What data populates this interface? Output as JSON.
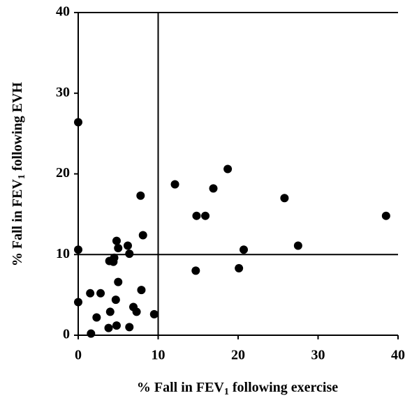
{
  "chart_data": {
    "type": "scatter",
    "xlabel": [
      "% Fall in FEV",
      "1",
      " following exercise"
    ],
    "ylabel": [
      "% Fall in FEV",
      "1",
      " following EVH"
    ],
    "x": [
      0,
      0,
      0,
      1.5,
      1.6,
      2.3,
      2.8,
      3.8,
      4.0,
      3.9,
      4.4,
      4.5,
      4.8,
      5.0,
      4.7,
      5.0,
      4.8,
      6.2,
      6.4,
      6.4,
      6.9,
      7.3,
      7.8,
      8.1,
      7.9,
      9.5,
      12.1,
      14.8,
      14.7,
      15.9,
      16.9,
      18.7,
      20.1,
      20.7,
      25.8,
      27.5,
      38.5
    ],
    "values": [
      26.4,
      10.6,
      4.1,
      5.2,
      0.2,
      2.2,
      5.2,
      0.9,
      2.9,
      9.2,
      9.1,
      9.6,
      11.7,
      10.8,
      4.4,
      6.6,
      1.2,
      11.1,
      10.1,
      1.0,
      3.5,
      2.9,
      17.3,
      12.4,
      5.6,
      2.6,
      18.7,
      14.8,
      8.0,
      14.8,
      18.2,
      20.6,
      8.3,
      10.6,
      17.0,
      11.1,
      14.8
    ],
    "color": "#000000",
    "xlim": [
      0,
      40
    ],
    "ylim": [
      0,
      40
    ],
    "xticks": [
      0,
      10,
      20,
      30,
      40
    ],
    "yticks": [
      0,
      10,
      20,
      30,
      40
    ],
    "reference_lines": {
      "x": 10,
      "y": 10
    }
  }
}
